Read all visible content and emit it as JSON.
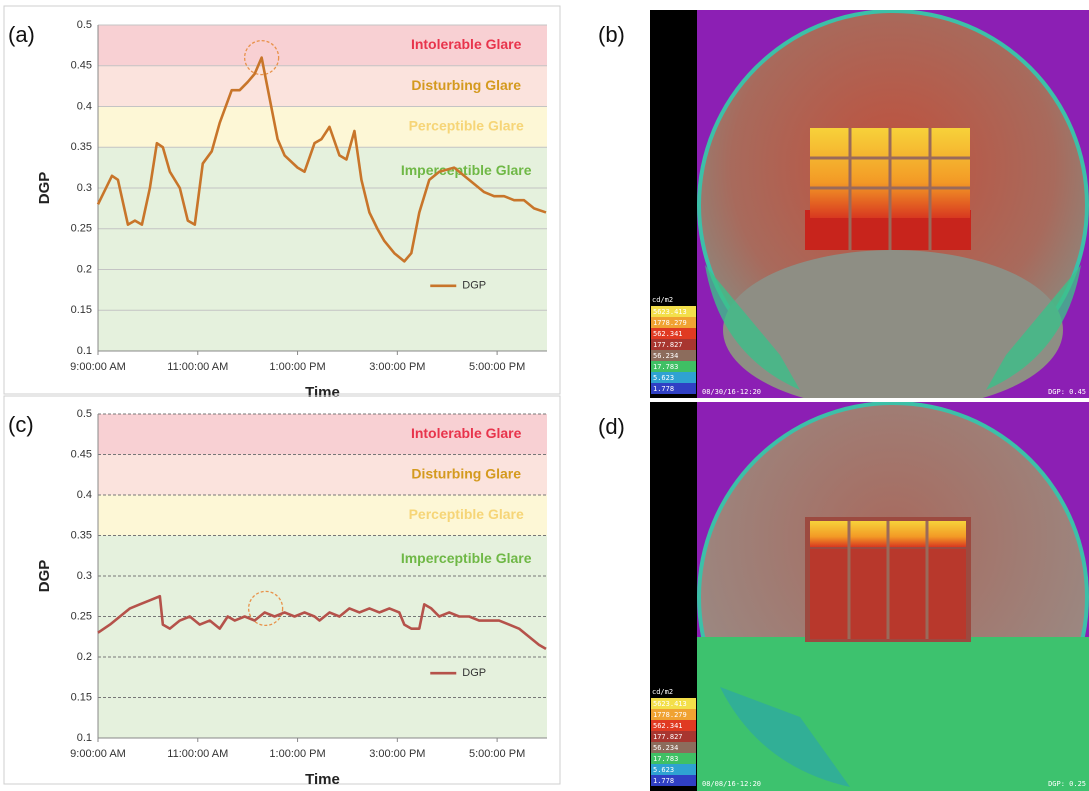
{
  "chart_data": [
    {
      "type": "line",
      "panel_label": "(a)",
      "x_label": "Time",
      "y_label": "DGP",
      "xlim": [
        9,
        18
      ],
      "xticks": [
        {
          "value": 9,
          "label": "9:00:00 AM"
        },
        {
          "value": 11,
          "label": "11:00:00 AM"
        },
        {
          "value": 13,
          "label": "1:00:00 PM"
        },
        {
          "value": 15,
          "label": "3:00:00 PM"
        },
        {
          "value": 17,
          "label": "5:00:00 PM"
        }
      ],
      "ylim": [
        0.1,
        0.5
      ],
      "yticks": [
        0.1,
        0.15,
        0.2,
        0.25,
        0.3,
        0.35,
        0.4,
        0.45,
        0.5
      ],
      "grid": true,
      "grid_style": "solid",
      "legend": "lower right",
      "zones": [
        {
          "label": "Intolerable Glare",
          "from": 0.45,
          "to": 0.5,
          "color": "#f8d0d3",
          "text_color": "#e8344c"
        },
        {
          "label": "Disturbing Glare",
          "from": 0.4,
          "to": 0.45,
          "color": "#fbe3dd",
          "text_color": "#d49a1e"
        },
        {
          "label": "Perceptible Glare",
          "from": 0.35,
          "to": 0.4,
          "color": "#fdf7d6",
          "text_color": "#f6d577"
        },
        {
          "label": "Imperceptible Glare",
          "from": 0.1,
          "to": 0.35,
          "color": "#e5f1dd",
          "text_color": "#6fb846"
        }
      ],
      "highlight_x": 12.28,
      "highlight_y": 0.46,
      "x": [
        9.0,
        9.28,
        9.4,
        9.6,
        9.74,
        9.88,
        10.04,
        10.18,
        10.3,
        10.44,
        10.64,
        10.8,
        10.94,
        11.1,
        11.28,
        11.44,
        11.68,
        11.84,
        12.0,
        12.14,
        12.28,
        12.44,
        12.6,
        12.74,
        13.0,
        13.14,
        13.34,
        13.48,
        13.64,
        13.84,
        13.98,
        14.14,
        14.28,
        14.44,
        14.6,
        14.74,
        14.94,
        15.14,
        15.28,
        15.44,
        15.64,
        15.84,
        16.14,
        16.44,
        16.74,
        16.94,
        17.14,
        17.34,
        17.54,
        17.74,
        17.98
      ],
      "series": [
        {
          "name": "DGP",
          "color": "#c8752a",
          "values": [
            0.28,
            0.315,
            0.31,
            0.255,
            0.26,
            0.255,
            0.3,
            0.355,
            0.35,
            0.32,
            0.3,
            0.26,
            0.255,
            0.33,
            0.345,
            0.38,
            0.42,
            0.42,
            0.43,
            0.44,
            0.46,
            0.41,
            0.36,
            0.34,
            0.325,
            0.32,
            0.355,
            0.36,
            0.375,
            0.34,
            0.335,
            0.37,
            0.31,
            0.27,
            0.25,
            0.235,
            0.22,
            0.21,
            0.22,
            0.27,
            0.31,
            0.32,
            0.325,
            0.31,
            0.295,
            0.29,
            0.29,
            0.285,
            0.285,
            0.275,
            0.27
          ]
        }
      ]
    },
    {
      "type": "line",
      "panel_label": "(c)",
      "x_label": "Time",
      "y_label": "DGP",
      "xlim": [
        9,
        18
      ],
      "xticks": [
        {
          "value": 9,
          "label": "9:00:00 AM"
        },
        {
          "value": 11,
          "label": "11:00:00 AM"
        },
        {
          "value": 13,
          "label": "1:00:00 PM"
        },
        {
          "value": 15,
          "label": "3:00:00 PM"
        },
        {
          "value": 17,
          "label": "5:00:00 PM"
        }
      ],
      "ylim": [
        0.1,
        0.5
      ],
      "yticks": [
        0.1,
        0.15,
        0.2,
        0.25,
        0.3,
        0.35,
        0.4,
        0.45,
        0.5
      ],
      "grid": true,
      "grid_style": "dashed",
      "legend": "lower right",
      "zones": [
        {
          "label": "Intolerable Glare",
          "from": 0.45,
          "to": 0.5,
          "color": "#f8d0d3",
          "text_color": "#e8344c"
        },
        {
          "label": "Disturbing Glare",
          "from": 0.4,
          "to": 0.45,
          "color": "#fbe3dd",
          "text_color": "#d49a1e"
        },
        {
          "label": "Perceptible Glare",
          "from": 0.35,
          "to": 0.4,
          "color": "#fdf7d6",
          "text_color": "#f6d577"
        },
        {
          "label": "Imperceptible Glare",
          "from": 0.1,
          "to": 0.35,
          "color": "#e5f1dd",
          "text_color": "#6fb846"
        }
      ],
      "highlight_x": 12.36,
      "highlight_y": 0.26,
      "x": [
        9.0,
        9.24,
        9.44,
        9.64,
        9.84,
        10.04,
        10.24,
        10.3,
        10.44,
        10.64,
        10.84,
        11.04,
        11.24,
        11.44,
        11.6,
        11.74,
        11.94,
        12.14,
        12.34,
        12.54,
        12.74,
        12.94,
        13.14,
        13.34,
        13.44,
        13.64,
        13.84,
        14.04,
        14.24,
        14.44,
        14.64,
        14.84,
        15.04,
        15.14,
        15.28,
        15.44,
        15.54,
        15.68,
        15.84,
        16.04,
        16.24,
        16.44,
        16.64,
        16.84,
        17.04,
        17.24,
        17.44,
        17.64,
        17.84,
        17.98
      ],
      "series": [
        {
          "name": "DGP",
          "color": "#b5524a",
          "values": [
            0.23,
            0.24,
            0.25,
            0.26,
            0.265,
            0.27,
            0.275,
            0.24,
            0.235,
            0.245,
            0.25,
            0.24,
            0.245,
            0.235,
            0.25,
            0.245,
            0.25,
            0.245,
            0.255,
            0.25,
            0.255,
            0.25,
            0.255,
            0.25,
            0.245,
            0.255,
            0.25,
            0.26,
            0.255,
            0.26,
            0.255,
            0.26,
            0.255,
            0.24,
            0.235,
            0.235,
            0.265,
            0.26,
            0.25,
            0.255,
            0.25,
            0.25,
            0.245,
            0.245,
            0.245,
            0.24,
            0.235,
            0.225,
            0.215,
            0.21
          ]
        }
      ]
    }
  ],
  "images": [
    {
      "panel_label": "(b)",
      "unit": "cd/m2",
      "scale": [
        "5623.413",
        "1778.279",
        "562.341",
        "177.827",
        "56.234",
        "17.783",
        "5.623",
        "1.778"
      ],
      "timestamp": "08/30/16-12:20",
      "dgp_label": "DGP: 0.45"
    },
    {
      "panel_label": "(d)",
      "unit": "cd/m2",
      "scale": [
        "5623.413",
        "1778.279",
        "562.341",
        "177.827",
        "56.234",
        "17.783",
        "5.623",
        "1.778"
      ],
      "timestamp": "08/08/16-12:20",
      "dgp_label": "DGP: 0.25"
    }
  ]
}
